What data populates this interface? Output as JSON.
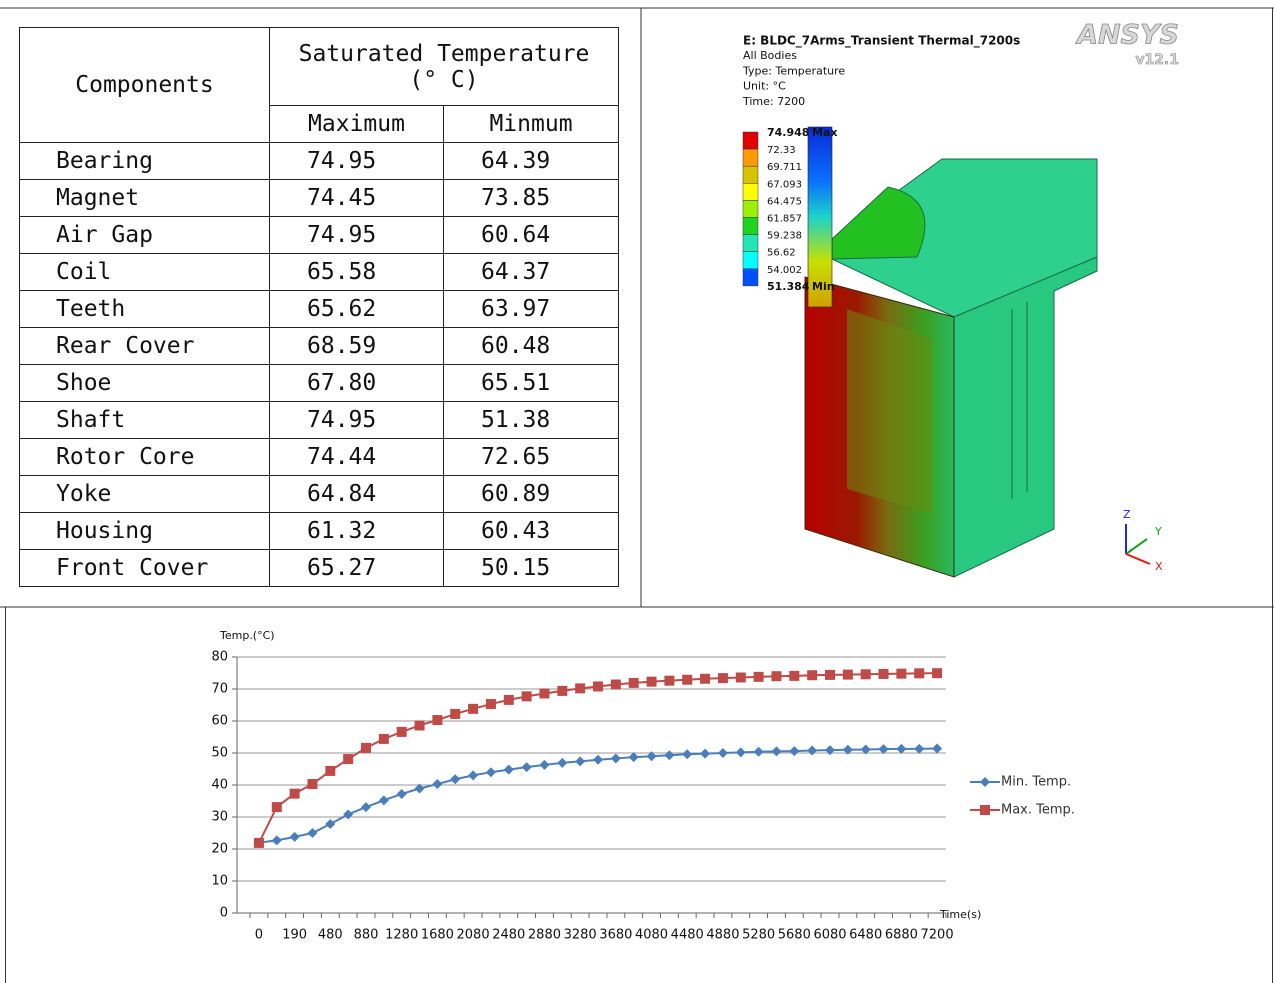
{
  "table": {
    "header": {
      "components": "Components",
      "saturated": "Saturated Temperature",
      "unit": "(° C)",
      "maximum": "Maximum",
      "minimum": "Minmum"
    },
    "rows": [
      [
        "Bearing",
        "74.95",
        "64.39"
      ],
      [
        "Magnet",
        "74.45",
        "73.85"
      ],
      [
        "Air Gap",
        "74.95",
        "60.64"
      ],
      [
        "Coil",
        "65.58",
        "64.37"
      ],
      [
        "Teeth",
        "65.62",
        "63.97"
      ],
      [
        "Rear Cover",
        "68.59",
        "60.48"
      ],
      [
        "Shoe",
        "67.80",
        "65.51"
      ],
      [
        "Shaft",
        "74.95",
        "51.38"
      ],
      [
        "Rotor Core",
        "74.44",
        "72.65"
      ],
      [
        "Yoke",
        "64.84",
        "60.89"
      ],
      [
        "Housing",
        "61.32",
        "60.43"
      ],
      [
        "Front Cover",
        "65.27",
        "50.15"
      ]
    ]
  },
  "simulation": {
    "title": "E: BLDC_7Arms_Transient Thermal_7200s",
    "info": [
      "All Bodies",
      "Type: Temperature",
      "Unit: °C",
      "Time: 7200"
    ],
    "logo": "ANSYS",
    "version": "v12.1",
    "legend": [
      "74.948",
      "72.33",
      "69.711",
      "67.093",
      "64.475",
      "61.857",
      "59.238",
      "56.62",
      "54.002",
      "51.384"
    ],
    "max_tag": "Max",
    "min_tag": "Min",
    "bands": [
      "#e00000",
      "#ff9a00",
      "#d6c400",
      "#ffff00",
      "#9cf000",
      "#1ed41e",
      "#22e6b4",
      "#00ffff",
      "#0050ff"
    ],
    "axes": [
      "Z",
      "Y",
      "X"
    ]
  },
  "chart_data": {
    "type": "line",
    "y_label": "Temp.(°C)",
    "x_label": "Time(s)",
    "categories": [
      "0",
      null,
      "190",
      null,
      "480",
      null,
      "880",
      null,
      "1280",
      null,
      "1680",
      null,
      "2080",
      null,
      "2480",
      null,
      "2880",
      null,
      "3280",
      null,
      "3680",
      null,
      "4080",
      null,
      "4480",
      null,
      "4880",
      null,
      "5280",
      null,
      "5680",
      null,
      "6080",
      null,
      "6480",
      null,
      "6880",
      null,
      "7200"
    ],
    "series": [
      {
        "name": "Min. Temp.",
        "color": "#4a7ebb",
        "marker": "diamond",
        "values": [
          22,
          22.7,
          23.8,
          25,
          27.8,
          30.8,
          33.1,
          35.2,
          37.2,
          38.9,
          40.3,
          41.8,
          43,
          44,
          44.8,
          45.6,
          46.3,
          46.9,
          47.4,
          47.9,
          48.3,
          48.7,
          49,
          49.3,
          49.6,
          49.8,
          50,
          50.2,
          50.4,
          50.5,
          50.6,
          50.8,
          50.9,
          51,
          51.1,
          51.2,
          51.3,
          51.3,
          51.4
        ]
      },
      {
        "name": "Max. Temp.",
        "color": "#be4b48",
        "marker": "square",
        "values": [
          21.9,
          33.1,
          37.3,
          40.3,
          44.4,
          48.1,
          51.6,
          54.4,
          56.6,
          58.6,
          60.3,
          62.2,
          63.8,
          65.3,
          66.6,
          67.7,
          68.6,
          69.4,
          70.2,
          70.8,
          71.4,
          71.9,
          72.3,
          72.6,
          72.9,
          73.2,
          73.4,
          73.6,
          73.8,
          74,
          74.1,
          74.3,
          74.4,
          74.5,
          74.6,
          74.7,
          74.8,
          74.9,
          74.95
        ]
      }
    ],
    "ylim": [
      0,
      80
    ],
    "yticks": [
      0,
      10,
      20,
      30,
      40,
      50,
      60,
      70,
      80
    ],
    "grid": true,
    "legend": "right"
  }
}
